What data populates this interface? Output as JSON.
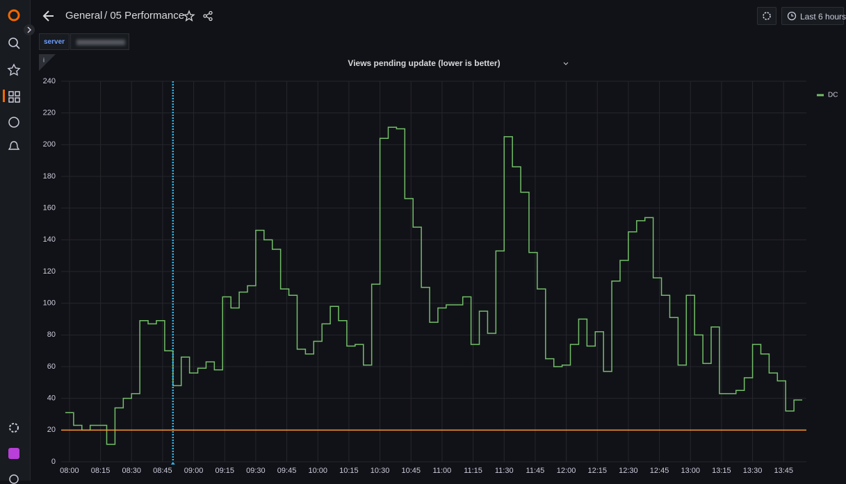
{
  "header": {
    "folder": "General",
    "dashboard": "/ 05 Performance",
    "time_range": "Last 6 hours"
  },
  "variables": [
    {
      "label": "server"
    }
  ],
  "panel_info": "i",
  "chart_data": {
    "type": "line",
    "title": "Views pending update (lower is better)",
    "x": [
      478,
      482,
      486,
      490,
      494,
      498,
      502,
      506,
      510,
      514,
      518,
      522,
      526,
      530,
      534,
      538,
      542,
      546,
      550,
      554,
      558,
      562,
      566,
      570,
      574,
      578,
      582,
      586,
      590,
      594,
      598,
      602,
      606,
      610,
      614,
      618,
      622,
      626,
      630,
      634,
      638,
      642,
      646,
      650,
      654,
      658,
      662,
      666,
      670,
      674,
      678,
      682,
      686,
      690,
      694,
      698,
      702,
      706,
      710,
      714,
      718,
      722,
      726,
      730,
      734,
      738,
      742,
      746,
      750,
      754,
      758,
      762,
      766,
      770,
      774,
      778,
      782,
      786,
      790,
      794,
      798,
      802,
      806,
      810,
      814,
      818,
      822,
      826,
      830
    ],
    "series": [
      {
        "name": "DC",
        "color": "#73bf69",
        "values": [
          31,
          23,
          20,
          23,
          23,
          11,
          34,
          40,
          43,
          89,
          87,
          89,
          70,
          48,
          66,
          56,
          59,
          63,
          58,
          104,
          97,
          107,
          111,
          146,
          140,
          134,
          109,
          105,
          71,
          68,
          76,
          87,
          98,
          89,
          73,
          74,
          61,
          112,
          204,
          211,
          210,
          166,
          148,
          110,
          88,
          97,
          99,
          99,
          104,
          74,
          95,
          81,
          133,
          205,
          186,
          170,
          132,
          109,
          65,
          60,
          61,
          74,
          90,
          73,
          82,
          57,
          114,
          127,
          145,
          152,
          154,
          116,
          105,
          91,
          61,
          105,
          80,
          62,
          85,
          43,
          43,
          45,
          53,
          74,
          68,
          56,
          51,
          32,
          39
        ]
      }
    ],
    "threshold": 20,
    "threshold_color": "#ff9830",
    "annotation_x": 530,
    "annotation_color": "#33b5e5",
    "xlim": [
      476,
      836
    ],
    "xticks": [
      {
        "value": 480,
        "label": "08:00"
      },
      {
        "value": 495,
        "label": "08:15"
      },
      {
        "value": 510,
        "label": "08:30"
      },
      {
        "value": 525,
        "label": "08:45"
      },
      {
        "value": 540,
        "label": "09:00"
      },
      {
        "value": 555,
        "label": "09:15"
      },
      {
        "value": 570,
        "label": "09:30"
      },
      {
        "value": 585,
        "label": "09:45"
      },
      {
        "value": 600,
        "label": "10:00"
      },
      {
        "value": 615,
        "label": "10:15"
      },
      {
        "value": 630,
        "label": "10:30"
      },
      {
        "value": 645,
        "label": "10:45"
      },
      {
        "value": 660,
        "label": "11:00"
      },
      {
        "value": 675,
        "label": "11:15"
      },
      {
        "value": 690,
        "label": "11:30"
      },
      {
        "value": 705,
        "label": "11:45"
      },
      {
        "value": 720,
        "label": "12:00"
      },
      {
        "value": 735,
        "label": "12:15"
      },
      {
        "value": 750,
        "label": "12:30"
      },
      {
        "value": 765,
        "label": "12:45"
      },
      {
        "value": 780,
        "label": "13:00"
      },
      {
        "value": 795,
        "label": "13:15"
      },
      {
        "value": 810,
        "label": "13:30"
      },
      {
        "value": 825,
        "label": "13:45"
      }
    ],
    "ylim": [
      0,
      240
    ],
    "yticks": [
      0,
      20,
      40,
      60,
      80,
      100,
      120,
      140,
      160,
      180,
      200,
      220,
      240
    ],
    "grid": true,
    "legend": "right"
  }
}
